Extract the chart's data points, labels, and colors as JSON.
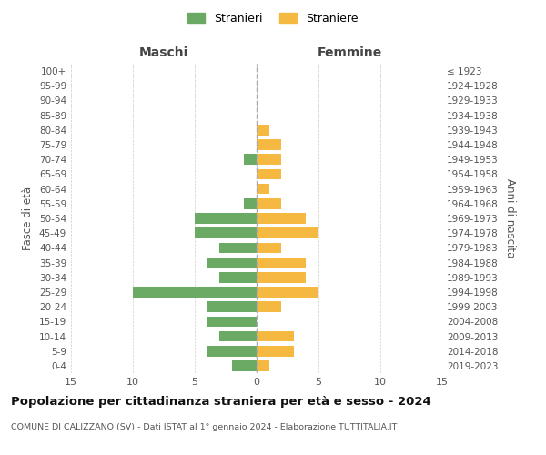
{
  "age_groups": [
    "100+",
    "95-99",
    "90-94",
    "85-89",
    "80-84",
    "75-79",
    "70-74",
    "65-69",
    "60-64",
    "55-59",
    "50-54",
    "45-49",
    "40-44",
    "35-39",
    "30-34",
    "25-29",
    "20-24",
    "15-19",
    "10-14",
    "5-9",
    "0-4"
  ],
  "birth_years": [
    "≤ 1923",
    "1924-1928",
    "1929-1933",
    "1934-1938",
    "1939-1943",
    "1944-1948",
    "1949-1953",
    "1954-1958",
    "1959-1963",
    "1964-1968",
    "1969-1973",
    "1974-1978",
    "1979-1983",
    "1984-1988",
    "1989-1993",
    "1994-1998",
    "1999-2003",
    "2004-2008",
    "2009-2013",
    "2014-2018",
    "2019-2023"
  ],
  "maschi": [
    0,
    0,
    0,
    0,
    0,
    0,
    1,
    0,
    0,
    1,
    5,
    5,
    3,
    4,
    3,
    10,
    4,
    4,
    3,
    4,
    2
  ],
  "femmine": [
    0,
    0,
    0,
    0,
    1,
    2,
    2,
    2,
    1,
    2,
    4,
    5,
    2,
    4,
    4,
    5,
    2,
    0,
    3,
    3,
    1
  ],
  "color_maschi": "#6aaa64",
  "color_femmine": "#f5b942",
  "title": "Popolazione per cittadinanza straniera per età e sesso - 2024",
  "subtitle": "COMUNE DI CALIZZANO (SV) - Dati ISTAT al 1° gennaio 2024 - Elaborazione TUTTITALIA.IT",
  "xlabel_left": "Maschi",
  "xlabel_right": "Femmine",
  "ylabel_left": "Fasce di età",
  "ylabel_right": "Anni di nascita",
  "legend_maschi": "Stranieri",
  "legend_femmine": "Straniere",
  "xlim": 15,
  "background_color": "#ffffff",
  "grid_color": "#cccccc"
}
